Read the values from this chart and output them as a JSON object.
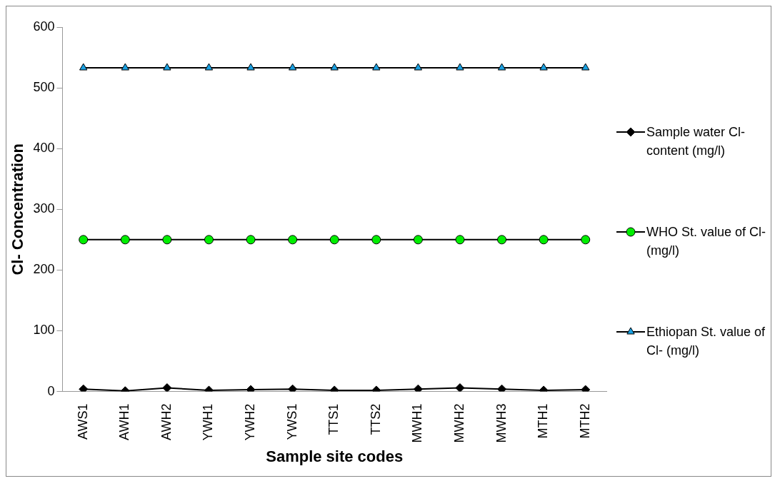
{
  "chart_data": {
    "type": "line",
    "xlabel": "Sample site codes",
    "ylabel": "Cl- Concentration",
    "categories": [
      "AWS1",
      "AWH1",
      "AWH2",
      "YWH1",
      "YWH2",
      "YWS1",
      "TTS1",
      "TTS2",
      "MWH1",
      "MWH2",
      "MWH3",
      "MTH1",
      "MTH2"
    ],
    "series": [
      {
        "name": "Sample water Cl- content (mg/l)",
        "color": "#000000",
        "marker": "diamond",
        "values": [
          4,
          1,
          6,
          2,
          3,
          4,
          2,
          2,
          4,
          6,
          4,
          2,
          3
        ]
      },
      {
        "name": "WHO St. value of Cl- (mg/l)",
        "color": "#00ee00",
        "marker": "circle",
        "values": [
          250,
          250,
          250,
          250,
          250,
          250,
          250,
          250,
          250,
          250,
          250,
          250,
          250
        ]
      },
      {
        "name": "Ethiopan St. value of Cl- (mg/l)",
        "color": "#1ba1e2",
        "marker": "triangle",
        "values": [
          533,
          533,
          533,
          533,
          533,
          533,
          533,
          533,
          533,
          533,
          533,
          533,
          533
        ]
      }
    ],
    "ylim": [
      0,
      600
    ],
    "yticks": [
      0,
      100,
      200,
      300,
      400,
      500,
      600
    ],
    "grid": false,
    "legend": "right"
  }
}
